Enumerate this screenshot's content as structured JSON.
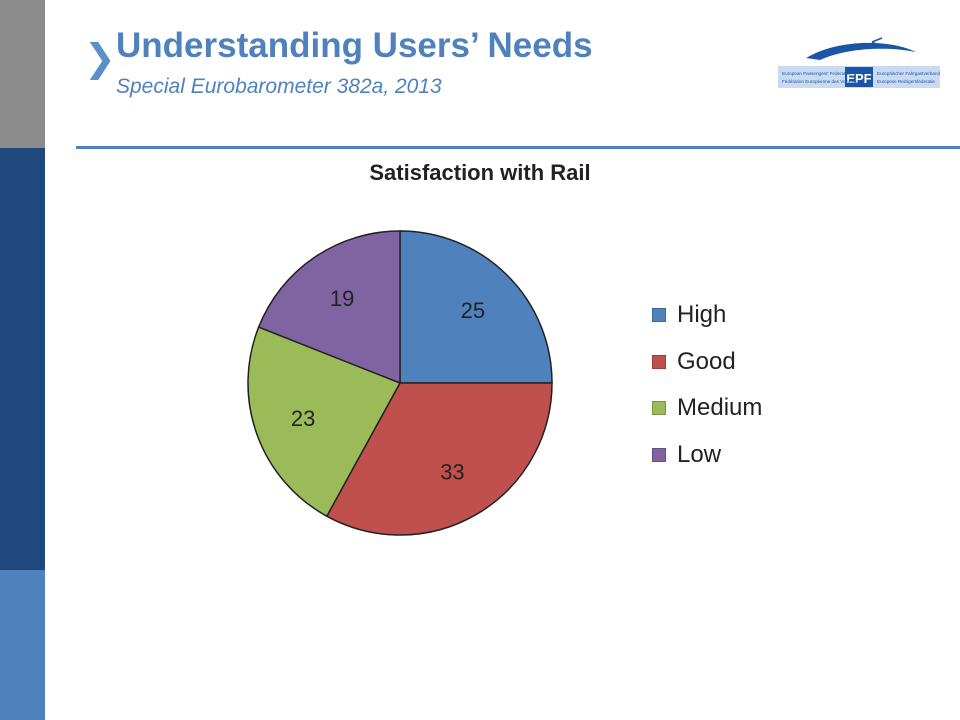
{
  "header": {
    "title": "Understanding Users’ Needs",
    "subtitle": "Special Eurobarometer 382a, 2013",
    "chevron": "❯"
  },
  "logo": {
    "acronym": "EPF",
    "text_left_1": "European Passengers' Federation",
    "text_left_2": "Fédération Européenne des Voyageurs",
    "text_right_1": "Europäischer Fahrgastverband",
    "text_right_2": "Europese Reizigersfederatie",
    "colors": {
      "blue": "#1a56a5",
      "light_blue": "#c9daf1"
    }
  },
  "colors": {
    "accent": "#4f81bd",
    "sidebar_top": "#8c8c8c",
    "sidebar_mid": "#1f497d",
    "sidebar_bottom": "#4f81bd"
  },
  "chart_data": {
    "type": "pie",
    "title": "Satisfaction with Rail",
    "categories": [
      "High",
      "Good",
      "Medium",
      "Low"
    ],
    "values": [
      25,
      33,
      23,
      19
    ],
    "colors": [
      "#4f81bd",
      "#c0504d",
      "#9bbb59",
      "#8064a2"
    ],
    "data_labels": true,
    "legend_position": "right"
  }
}
